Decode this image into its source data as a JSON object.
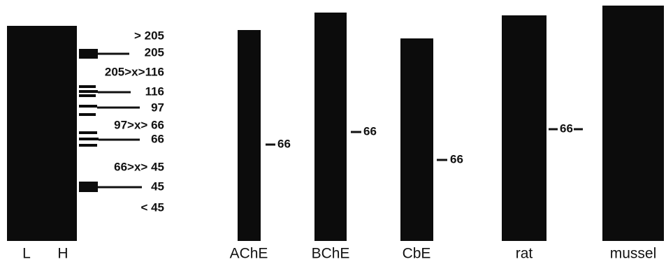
{
  "marker_gel": {
    "lanes": [
      "L",
      "H"
    ],
    "markers": [
      "> 205",
      "205",
      "205>x>116",
      "116",
      "97",
      "97>x> 66",
      "66",
      "66>x> 45",
      "45",
      "< 45"
    ]
  },
  "lanes": [
    {
      "name": "AChE",
      "marker": "66"
    },
    {
      "name": "BChE",
      "marker": "66"
    },
    {
      "name": "CbE",
      "marker": "66"
    },
    {
      "name": "rat",
      "marker": "66"
    },
    {
      "name": "mussel"
    }
  ]
}
